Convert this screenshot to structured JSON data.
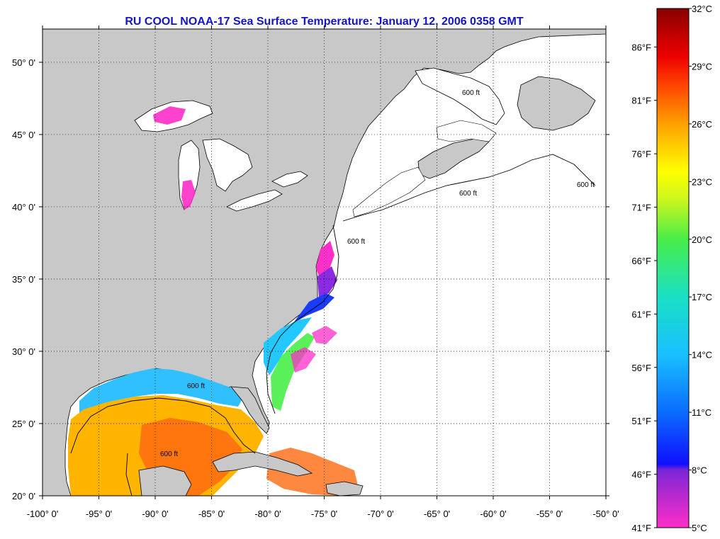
{
  "title": "RU COOL  NOAA-17  Sea Surface Temperature:  January 12, 2006 0358 GMT",
  "map": {
    "lon_range": [
      -100,
      -50
    ],
    "lat_range": [
      20,
      52.3
    ],
    "lon_ticks": [
      {
        "value": -100,
        "label": "-100° 0'"
      },
      {
        "value": -95,
        "label": "-95° 0'"
      },
      {
        "value": -90,
        "label": "-90° 0'"
      },
      {
        "value": -85,
        "label": "-85° 0'"
      },
      {
        "value": -80,
        "label": "-80° 0'"
      },
      {
        "value": -75,
        "label": "-75° 0'"
      },
      {
        "value": -70,
        "label": "-70° 0'"
      },
      {
        "value": -65,
        "label": "-65° 0'"
      },
      {
        "value": -60,
        "label": "-60° 0'"
      },
      {
        "value": -55,
        "label": "-55° 0'"
      },
      {
        "value": -50,
        "label": "-50° 0'"
      }
    ],
    "lat_ticks": [
      {
        "value": 20,
        "label": "20° 0'"
      },
      {
        "value": 25,
        "label": "25° 0'"
      },
      {
        "value": 30,
        "label": "30° 0'"
      },
      {
        "value": 35,
        "label": "35° 0'"
      },
      {
        "value": 40,
        "label": "40° 0'"
      },
      {
        "value": 45,
        "label": "45° 0'"
      },
      {
        "value": 50,
        "label": "50° 0'"
      }
    ],
    "land_color": "#c8c8c8",
    "no_data_color": "#ffffff",
    "contour_label": "600 ft",
    "gridlines": "dotted"
  },
  "colorbar": {
    "range_c": [
      5,
      32
    ],
    "labels_c": [
      {
        "value": 32,
        "label": "32°C"
      },
      {
        "value": 29,
        "label": "29°C"
      },
      {
        "value": 26,
        "label": "26°C"
      },
      {
        "value": 23,
        "label": "23°C"
      },
      {
        "value": 20,
        "label": "20°C"
      },
      {
        "value": 17,
        "label": "17°C"
      },
      {
        "value": 14,
        "label": "14°C"
      },
      {
        "value": 11,
        "label": "11°C"
      },
      {
        "value": 8,
        "label": "8°C"
      },
      {
        "value": 5,
        "label": "5°C"
      }
    ],
    "labels_f": [
      {
        "value": 86,
        "label": "86°F"
      },
      {
        "value": 81,
        "label": "81°F"
      },
      {
        "value": 76,
        "label": "76°F"
      },
      {
        "value": 71,
        "label": "71°F"
      },
      {
        "value": 66,
        "label": "66°F"
      },
      {
        "value": 61,
        "label": "61°F"
      },
      {
        "value": 56,
        "label": "56°F"
      },
      {
        "value": 51,
        "label": "51°F"
      },
      {
        "value": 46,
        "label": "46°F"
      },
      {
        "value": 41,
        "label": "41°F"
      }
    ],
    "stops": [
      {
        "c": 5,
        "color": "#ff2ec8"
      },
      {
        "c": 8,
        "color": "#7c26d6"
      },
      {
        "c": 8.3,
        "color": "#1010ff"
      },
      {
        "c": 11,
        "color": "#0a6cff"
      },
      {
        "c": 14,
        "color": "#19c0ff"
      },
      {
        "c": 17,
        "color": "#19e0c4"
      },
      {
        "c": 20,
        "color": "#48ee48"
      },
      {
        "c": 22,
        "color": "#c8f61e"
      },
      {
        "c": 23.5,
        "color": "#ffff00"
      },
      {
        "c": 26,
        "color": "#ffa000"
      },
      {
        "c": 28,
        "color": "#ff4400"
      },
      {
        "c": 29.5,
        "color": "#ee0000"
      },
      {
        "c": 32,
        "color": "#880000"
      }
    ]
  }
}
